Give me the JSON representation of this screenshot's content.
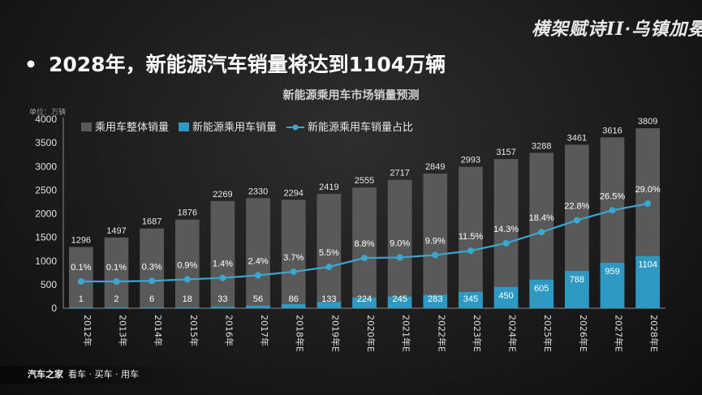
{
  "header": {
    "bullet": "•",
    "headline": "2028年，新能源汽车销量将达到1104万辆",
    "logo_text": "横架赋诗II·乌镇加冕"
  },
  "footer": {
    "brand": "汽车之家",
    "slogan": "看车 · 买车 · 用车"
  },
  "chart_data": {
    "type": "bar",
    "title": "新能源乘用车市场销量预测",
    "unit_label": "单位：万辆",
    "categories": [
      "2012年",
      "2013年",
      "2014年",
      "2015年",
      "2016年",
      "2017年",
      "2018年E",
      "2019年E",
      "2020年E",
      "2021年E",
      "2022年E",
      "2023年E",
      "2024年E",
      "2025年E",
      "2026年E",
      "2027年E",
      "2028年E"
    ],
    "series": [
      {
        "name": "乘用车整体销量",
        "type": "bar",
        "color": "#595959",
        "values": [
          1296,
          1497,
          1687,
          1876,
          2269,
          2330,
          2294,
          2419,
          2555,
          2717,
          2849,
          2993,
          3157,
          3288,
          3461,
          3616,
          3809
        ]
      },
      {
        "name": "新能源乘用车销量",
        "type": "bar",
        "color": "#2e9ac4",
        "values": [
          1,
          2,
          6,
          18,
          33,
          56,
          86,
          133,
          224,
          245,
          283,
          345,
          450,
          605,
          788,
          959,
          1104
        ]
      },
      {
        "name": "新能源乘用车销量占比",
        "type": "line",
        "color": "#3aa7d1",
        "values": [
          0.1,
          0.1,
          0.3,
          0.9,
          1.4,
          2.4,
          3.7,
          5.5,
          8.8,
          9.0,
          9.9,
          11.5,
          14.3,
          18.4,
          22.8,
          26.5,
          29.0
        ],
        "labels": [
          "0.1%",
          "0.1%",
          "0.3%",
          "0.9%",
          "1.4%",
          "2.4%",
          "3.7%",
          "5.5%",
          "8.8%",
          "9.0%",
          "9.9%",
          "11.5%",
          "14.3%",
          "18.4%",
          "22.8%",
          "26.5%",
          "29.0%"
        ]
      }
    ],
    "y_ticks": [
      0,
      500,
      1000,
      1500,
      2000,
      2500,
      3000,
      3500,
      4000
    ],
    "ylim": [
      0,
      4000
    ],
    "grid": false,
    "legend_position": "top-left"
  }
}
